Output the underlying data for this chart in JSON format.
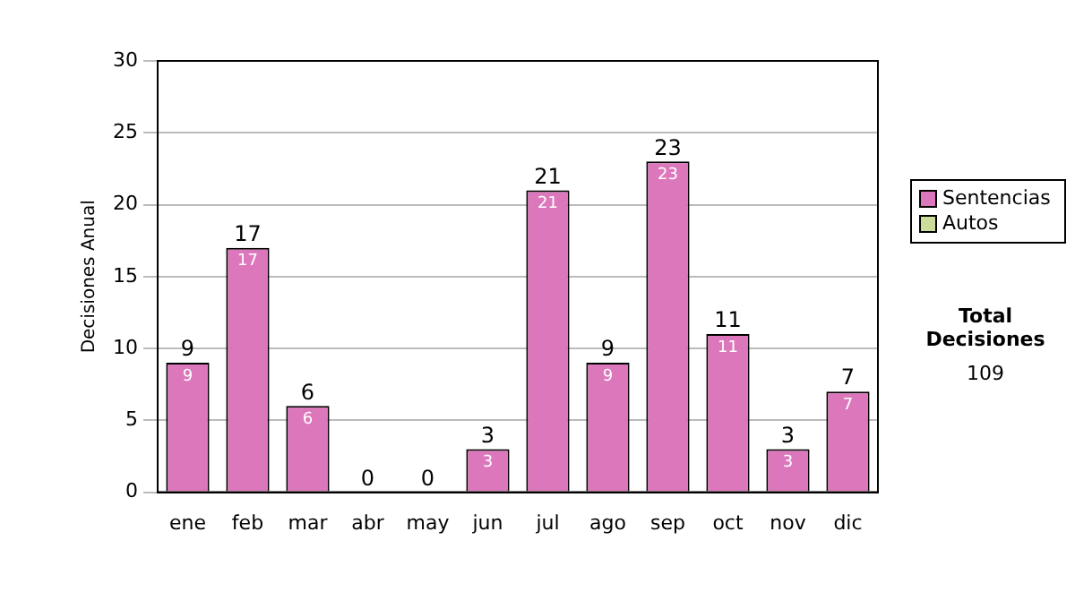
{
  "chart_data": {
    "type": "bar",
    "stacked": true,
    "ylabel": "Decisiones Anual",
    "categories": [
      "ene",
      "feb",
      "mar",
      "abr",
      "may",
      "jun",
      "jul",
      "ago",
      "sep",
      "oct",
      "nov",
      "dic"
    ],
    "series": [
      {
        "name": "Sentencias",
        "color": "#dd77bb",
        "values": [
          9,
          17,
          6,
          0,
          0,
          3,
          21,
          9,
          23,
          11,
          3,
          7
        ],
        "value_labels": [
          "9",
          "17",
          "6",
          null,
          null,
          "3",
          "21",
          "9",
          "23",
          "11",
          "3",
          "7"
        ]
      },
      {
        "name": "Autos",
        "color": "#ccdd99",
        "values": [
          0,
          0,
          0,
          0,
          0,
          0,
          0,
          0,
          0,
          0,
          0,
          0
        ]
      }
    ],
    "totals": [
      "9",
      "17",
      "6",
      "0",
      "0",
      "3",
      "21",
      "9",
      "23",
      "11",
      "3",
      "7"
    ],
    "ylim": [
      0,
      30
    ],
    "yticks": [
      0,
      5,
      10,
      15,
      20,
      25,
      30
    ],
    "grid": "y",
    "legend": "right",
    "annotations": [
      "Total Decisiones",
      "109"
    ]
  }
}
